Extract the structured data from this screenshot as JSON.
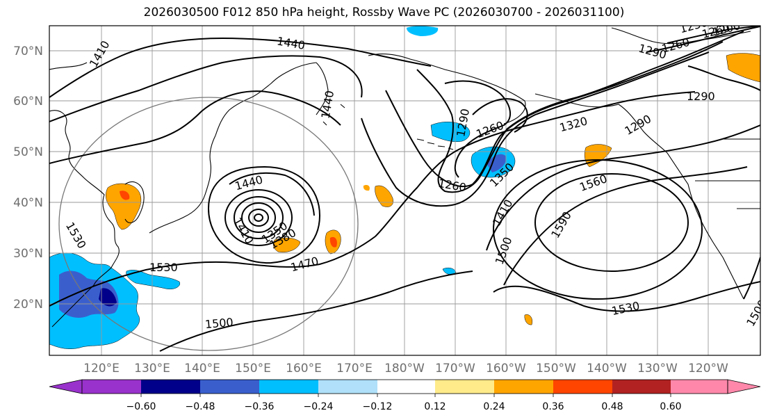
{
  "title": "2026030500 F012 850 hPa height, Rossby Wave PC (2026030700 - 2026031100)",
  "lat_labels": [
    "70°N",
    "60°N",
    "50°N",
    "40°N",
    "30°N",
    "20°N"
  ],
  "lon_labels": [
    "120°E",
    "130°E",
    "140°E",
    "150°E",
    "160°E",
    "170°E",
    "180°W",
    "170°W",
    "160°W",
    "150°W",
    "140°W",
    "130°W",
    "120°W"
  ],
  "contour_labels": [
    "1410",
    "1440",
    "1470",
    "1260",
    "1230",
    "1200",
    "1290",
    "1320",
    "1350",
    "1380",
    "1500",
    "1530",
    "1560",
    "1590",
    "1260",
    "1290",
    "1320",
    "1350",
    "1410",
    "1470",
    "1440",
    "1530",
    "1500",
    "1500",
    "1530"
  ],
  "colorbar": {
    "ticks": [
      "−0.60",
      "−0.48",
      "−0.36",
      "−0.24",
      "−0.12",
      "0.12",
      "0.24",
      "0.36",
      "0.48",
      "0.60"
    ],
    "colors": [
      "#9932cc",
      "#00008b",
      "#3a5fcd",
      "#00bfff",
      "#b0e0fa",
      "#ffffff",
      "#ffeb8a",
      "#ffa500",
      "#ff4500",
      "#b22222",
      "#ff88aa"
    ]
  },
  "shading_colors": {
    "negative_strong": "#3a5fcd",
    "negative": "#00bfff",
    "negative_weak": "#b0e0fa",
    "positive_weak": "#ffeb8a",
    "positive": "#ffa500",
    "positive_strong": "#ff4500"
  }
}
